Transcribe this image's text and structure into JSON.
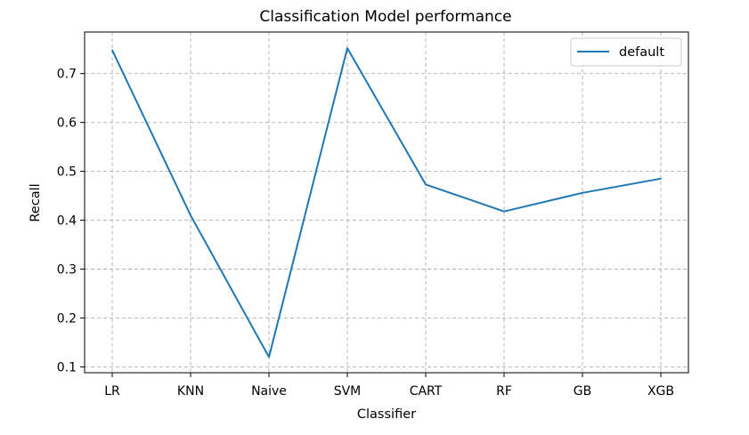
{
  "chart_data": {
    "type": "line",
    "title": "Classification Model performance",
    "xlabel": "Classifier",
    "ylabel": "Recall",
    "categories": [
      "LR",
      "KNN",
      "Naive",
      "SVM",
      "CART",
      "RF",
      "GB",
      "XGB"
    ],
    "series": [
      {
        "name": "default",
        "color": "#1f77b4",
        "values": [
          0.748,
          0.41,
          0.12,
          0.752,
          0.473,
          0.418,
          0.456,
          0.485
        ]
      }
    ],
    "ylim": [
      0.088,
      0.785
    ],
    "yticks": [
      0.1,
      0.2,
      0.3,
      0.4,
      0.5,
      0.6,
      0.7
    ],
    "ytick_labels": [
      "0.1",
      "0.2",
      "0.3",
      "0.4",
      "0.5",
      "0.6",
      "0.7"
    ],
    "grid": true,
    "legend_position": "top-right"
  }
}
